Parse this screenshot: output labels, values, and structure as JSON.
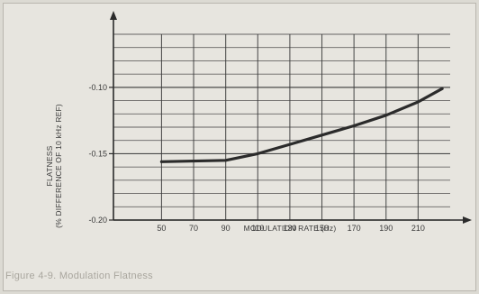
{
  "chart_data": {
    "type": "line",
    "title": "",
    "xlabel": "MODULATION RATE (Hz)",
    "ylabel_line1": "FLATNESS",
    "ylabel_line2": "(% DIFFERENCE OF 10 kHz REF)",
    "x_ticks": [
      "50",
      "70",
      "90",
      "110",
      "130",
      "150",
      "170",
      "190",
      "210"
    ],
    "x_tick_values": [
      50,
      70,
      90,
      110,
      130,
      150,
      170,
      190,
      210
    ],
    "y_ticks": [
      "-0.10",
      "-0.15",
      "-0.20"
    ],
    "y_tick_values": [
      -0.1,
      -0.15,
      -0.2
    ],
    "xlim": [
      20,
      230
    ],
    "ylim": [
      -0.2,
      -0.06
    ],
    "grid": true,
    "series": [
      {
        "values": [
          {
            "x": 50,
            "y": -0.156
          },
          {
            "x": 90,
            "y": -0.155
          },
          {
            "x": 110,
            "y": -0.15
          },
          {
            "x": 130,
            "y": -0.143
          },
          {
            "x": 150,
            "y": -0.136
          },
          {
            "x": 170,
            "y": -0.129
          },
          {
            "x": 190,
            "y": -0.121
          },
          {
            "x": 210,
            "y": -0.111
          },
          {
            "x": 225,
            "y": -0.101
          }
        ]
      }
    ]
  },
  "colors": {
    "ink": "#2b2b2b",
    "grid": "#3a3a3a",
    "paper": "#e7e5df"
  },
  "footer": "Figure 4-9. Modulation Flatness"
}
